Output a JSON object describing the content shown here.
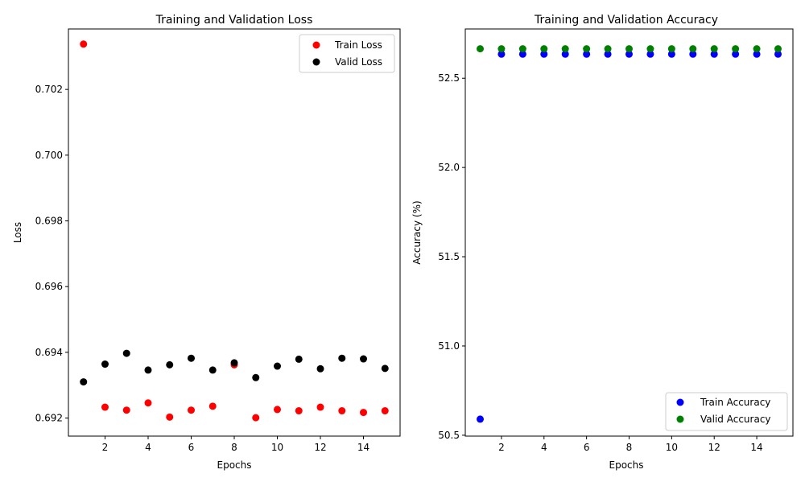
{
  "chart_data": [
    {
      "type": "scatter",
      "title": "Training and Validation Loss",
      "xlabel": "Epochs",
      "ylabel": "Loss",
      "xlim": [
        0.3,
        15.7
      ],
      "ylim": [
        0.69145,
        0.70384
      ],
      "xticks": [
        2,
        4,
        6,
        8,
        10,
        12,
        14
      ],
      "xtick_labels": [
        "2",
        "4",
        "6",
        "8",
        "10",
        "12",
        "14"
      ],
      "yticks": [
        0.692,
        0.694,
        0.696,
        0.698,
        0.7,
        0.702
      ],
      "ytick_labels": [
        "0.692",
        "0.694",
        "0.696",
        "0.698",
        "0.700",
        "0.702"
      ],
      "legend_position": "top-right",
      "grid": false,
      "x": [
        1,
        2,
        3,
        4,
        5,
        6,
        7,
        8,
        9,
        10,
        11,
        12,
        13,
        14,
        15
      ],
      "series": [
        {
          "name": "Train Loss",
          "color": "#ff0000",
          "values": [
            0.70338,
            0.69233,
            0.69224,
            0.69246,
            0.69203,
            0.69224,
            0.69236,
            0.69362,
            0.69201,
            0.69226,
            0.69222,
            0.69233,
            0.69222,
            0.69217,
            0.69222
          ]
        },
        {
          "name": "Valid Loss",
          "color": "#000000",
          "values": [
            0.6931,
            0.69364,
            0.69397,
            0.69346,
            0.69362,
            0.69382,
            0.69346,
            0.69368,
            0.69323,
            0.69358,
            0.69379,
            0.6935,
            0.69382,
            0.6938,
            0.69351
          ]
        }
      ]
    },
    {
      "type": "scatter",
      "title": "Training and Validation Accuracy",
      "xlabel": "Epochs",
      "ylabel": "Accuracy (%)",
      "xlim": [
        0.3,
        15.7
      ],
      "ylim": [
        50.495,
        52.776
      ],
      "xticks": [
        2,
        4,
        6,
        8,
        10,
        12,
        14
      ],
      "xtick_labels": [
        "2",
        "4",
        "6",
        "8",
        "10",
        "12",
        "14"
      ],
      "yticks": [
        50.5,
        51.0,
        51.5,
        52.0,
        52.5
      ],
      "ytick_labels": [
        "50.5",
        "51.0",
        "51.5",
        "52.0",
        "52.5"
      ],
      "legend_position": "bottom-right",
      "grid": false,
      "x": [
        1,
        2,
        3,
        4,
        5,
        6,
        7,
        8,
        9,
        10,
        11,
        12,
        13,
        14,
        15
      ],
      "series": [
        {
          "name": "Train Accuracy",
          "color": "#0000ff",
          "values": [
            50.59,
            52.635,
            52.635,
            52.635,
            52.635,
            52.635,
            52.635,
            52.635,
            52.635,
            52.635,
            52.635,
            52.635,
            52.635,
            52.635,
            52.635
          ]
        },
        {
          "name": "Valid Accuracy",
          "color": "#008000",
          "values": [
            52.665,
            52.665,
            52.665,
            52.665,
            52.665,
            52.665,
            52.665,
            52.665,
            52.665,
            52.665,
            52.665,
            52.665,
            52.665,
            52.665,
            52.665
          ]
        }
      ]
    }
  ]
}
